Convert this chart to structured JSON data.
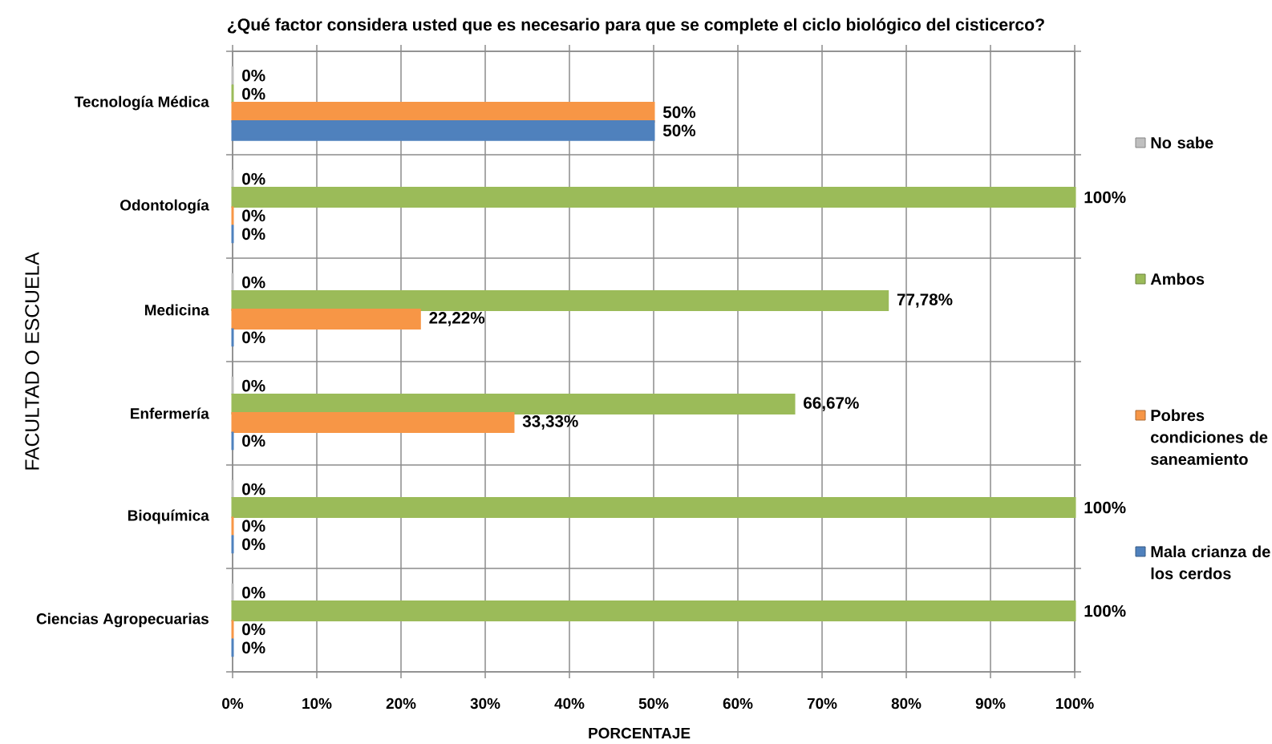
{
  "chart_data": {
    "type": "bar",
    "orientation": "horizontal",
    "title": "¿Qué factor considera usted que es necesario para que se complete el ciclo biológico del cisticerco?",
    "xlabel": "PORCENTAJE",
    "ylabel": "FACULTAD O ESCUELA",
    "categories": [
      "Tecnología Médica",
      "Odontología",
      "Medicina",
      "Enfermería",
      "Bioquímica",
      "Ciencias Agropecuarias"
    ],
    "series": [
      {
        "name": "No sabe",
        "color": "#bfbfbf",
        "values": [
          0,
          0,
          0,
          0,
          0,
          0
        ],
        "value_labels": [
          "0%",
          "0%",
          "0%",
          "0%",
          "0%",
          "0%"
        ]
      },
      {
        "name": "Ambos",
        "color": "#9bbb59",
        "values": [
          0,
          100,
          77.78,
          66.67,
          100,
          100
        ],
        "value_labels": [
          "0%",
          "100%",
          "77,78%",
          "66,67%",
          "100%",
          "100%"
        ]
      },
      {
        "name": "Pobres condiciones de saneamiento",
        "color": "#f79646",
        "values": [
          50,
          0,
          22.22,
          33.33,
          0,
          0
        ],
        "value_labels": [
          "50%",
          "0%",
          "22,22%",
          "33,33%",
          "0%",
          "0%"
        ]
      },
      {
        "name": "Mala crianza de los cerdos",
        "color": "#4f81bd",
        "values": [
          50,
          0,
          0,
          0,
          0,
          0
        ],
        "value_labels": [
          "50%",
          "0%",
          "0%",
          "0%",
          "0%",
          "0%"
        ]
      }
    ],
    "xlim": [
      0,
      100
    ],
    "xticks": [
      {
        "value": 0,
        "label": "0%"
      },
      {
        "value": 10,
        "label": "10%"
      },
      {
        "value": 20,
        "label": "20%"
      },
      {
        "value": 30,
        "label": "30%"
      },
      {
        "value": 40,
        "label": "40%"
      },
      {
        "value": 50,
        "label": "50%"
      },
      {
        "value": 60,
        "label": "60%"
      },
      {
        "value": 70,
        "label": "70%"
      },
      {
        "value": 80,
        "label": "80%"
      },
      {
        "value": 90,
        "label": "90%"
      },
      {
        "value": 100,
        "label": "100%"
      }
    ],
    "grid": true,
    "legend": "right"
  }
}
